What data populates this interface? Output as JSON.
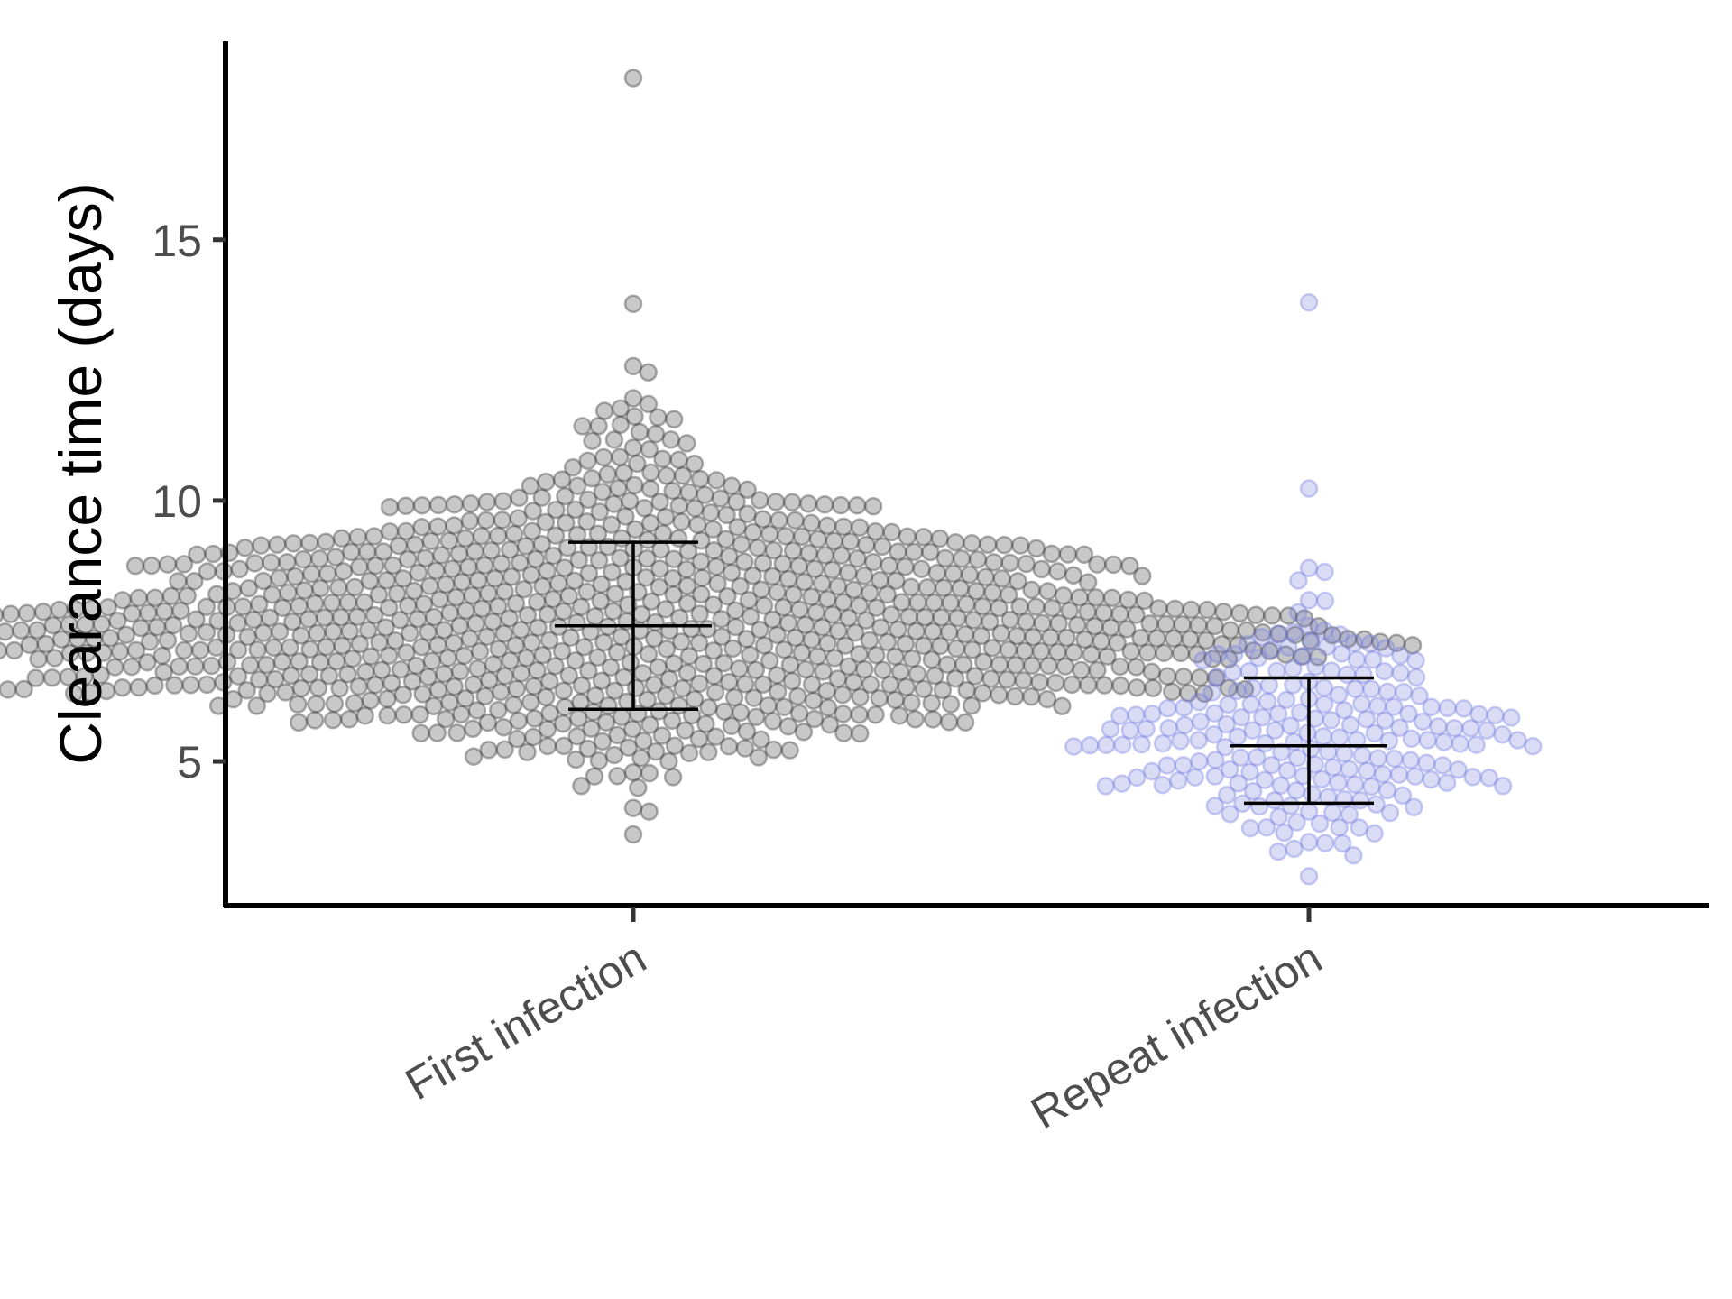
{
  "chart_data": {
    "type": "scatter",
    "subtype": "beeswarm",
    "title": "",
    "xlabel": "",
    "ylabel": "Clearance time (days)",
    "ylim": [
      2.2,
      18.8
    ],
    "yticks": [
      5,
      10,
      15
    ],
    "grid": false,
    "legend": "none",
    "categories": [
      "First infection",
      "Repeat infection"
    ],
    "series": [
      {
        "category": "First infection",
        "color": "#3a3a3a",
        "n_points": 1000,
        "min": 3.6,
        "max": 18.1,
        "mean": 7.6,
        "sd_lower": 6.0,
        "sd_upper": 9.2
      },
      {
        "category": "Repeat infection",
        "color": "#7b83e0",
        "n_points": 220,
        "min": 2.8,
        "max": 13.8,
        "mean": 5.3,
        "sd_lower": 4.2,
        "sd_upper": 6.6
      }
    ]
  }
}
